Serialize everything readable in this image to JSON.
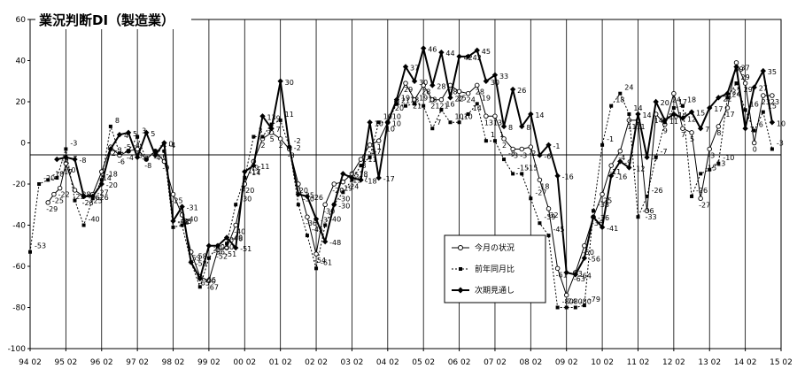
{
  "chart_data": {
    "type": "line",
    "title": "業況判断DI（製造業）",
    "xlabel": "",
    "ylabel": "",
    "ylim": [
      -100,
      60
    ],
    "yticks": [
      -100,
      -80,
      -60,
      -40,
      -20,
      0,
      20,
      40,
      60
    ],
    "grid": {
      "vertical_year_lines": true,
      "horizontal": false
    },
    "legend_position": "lower-right-center",
    "x_start": "1994-02",
    "x_end": "2015-02",
    "x_tick_labels": [
      "94 02",
      "95 02",
      "96 02",
      "97 02",
      "98 02",
      "99 02",
      "00 02",
      "01 02",
      "02 02",
      "03 02",
      "04 02",
      "05 02",
      "06 02",
      "07 02",
      "08 02",
      "09 02",
      "10 02",
      "11 02",
      "12 02",
      "13 02",
      "14 02",
      "15 02"
    ],
    "series": [
      {
        "name": "今月の状況",
        "marker": "circle-open",
        "points": [
          [
            "1994-08",
            -29
          ],
          [
            "1994-10",
            -25
          ],
          [
            "1994-12",
            -22
          ],
          [
            "1995-02",
            -10
          ],
          [
            "1995-05",
            -23
          ],
          [
            "1995-08",
            -26
          ],
          [
            "1995-11",
            -25
          ],
          [
            "1996-02",
            -14
          ],
          [
            "1996-05",
            -2
          ],
          [
            "1996-08",
            -6
          ],
          [
            "1996-11",
            -4
          ],
          [
            "1997-02",
            -3
          ],
          [
            "1997-05",
            -8
          ],
          [
            "1997-08",
            -4
          ],
          [
            "1997-11",
            -9
          ],
          [
            "1998-02",
            -25
          ],
          [
            "1998-05",
            -35
          ],
          [
            "1998-08",
            -53
          ],
          [
            "1998-11",
            -65
          ],
          [
            "1999-02",
            -67
          ],
          [
            "1999-05",
            -52
          ],
          [
            "1999-08",
            -51
          ],
          [
            "1999-11",
            -40
          ],
          [
            "2000-02",
            -20
          ],
          [
            "2000-05",
            -9
          ],
          [
            "2000-08",
            2
          ],
          [
            "2000-11",
            5
          ],
          [
            "2001-02",
            2
          ],
          [
            "2001-05",
            -3
          ],
          [
            "2001-08",
            -20
          ],
          [
            "2001-11",
            -36
          ],
          [
            "2002-02",
            -54
          ],
          [
            "2002-05",
            -30
          ],
          [
            "2002-08",
            -20
          ],
          [
            "2002-11",
            -19
          ],
          [
            "2003-02",
            -15
          ],
          [
            "2003-05",
            -8
          ],
          [
            "2003-08",
            -1
          ],
          [
            "2003-11",
            1
          ],
          [
            "2004-02",
            10
          ],
          [
            "2004-05",
            20
          ],
          [
            "2004-08",
            29
          ],
          [
            "2004-11",
            21
          ],
          [
            "2005-02",
            28
          ],
          [
            "2005-05",
            21
          ],
          [
            "2005-08",
            21
          ],
          [
            "2005-11",
            28
          ],
          [
            "2006-02",
            25
          ],
          [
            "2006-05",
            24
          ],
          [
            "2006-08",
            28
          ],
          [
            "2006-11",
            13
          ],
          [
            "2007-02",
            13
          ],
          [
            "2007-05",
            2
          ],
          [
            "2007-08",
            -3
          ],
          [
            "2007-11",
            -3
          ],
          [
            "2008-02",
            -2
          ],
          [
            "2008-05",
            -18
          ],
          [
            "2008-08",
            -32
          ],
          [
            "2008-11",
            -61
          ],
          [
            "2009-02",
            -74
          ],
          [
            "2009-05",
            -63
          ],
          [
            "2009-08",
            -50
          ],
          [
            "2009-11",
            -36
          ],
          [
            "2010-02",
            -25
          ],
          [
            "2010-05",
            -11
          ],
          [
            "2010-08",
            -4
          ],
          [
            "2010-11",
            11
          ],
          [
            "2011-02",
            11
          ],
          [
            "2011-05",
            -33
          ],
          [
            "2011-08",
            14
          ],
          [
            "2011-11",
            9
          ],
          [
            "2012-02",
            24
          ],
          [
            "2012-05",
            7
          ],
          [
            "2012-08",
            5
          ],
          [
            "2012-11",
            -27
          ],
          [
            "2013-02",
            -3
          ],
          [
            "2013-05",
            8
          ],
          [
            "2013-08",
            17
          ],
          [
            "2013-11",
            39
          ],
          [
            "2014-02",
            29
          ],
          [
            "2014-05",
            0
          ],
          [
            "2014-08",
            23
          ],
          [
            "2014-11",
            23
          ]
        ]
      },
      {
        "name": "前年同月比",
        "marker": "square-filled",
        "points": [
          [
            "1994-02",
            -53
          ],
          [
            "1994-05",
            -20
          ],
          [
            "1994-08",
            -18
          ],
          [
            "1994-11",
            -17
          ],
          [
            "1995-02",
            -3
          ],
          [
            "1995-05",
            -28
          ],
          [
            "1995-08",
            -40
          ],
          [
            "1995-11",
            -27
          ],
          [
            "1996-02",
            -18
          ],
          [
            "1996-05",
            8
          ],
          [
            "1996-08",
            -5
          ],
          [
            "1996-11",
            -4
          ],
          [
            "1997-02",
            3
          ],
          [
            "1997-05",
            -8
          ],
          [
            "1997-08",
            -4
          ],
          [
            "1997-11",
            -4
          ],
          [
            "1998-02",
            -41
          ],
          [
            "1998-05",
            -40
          ],
          [
            "1998-08",
            -58
          ],
          [
            "1998-11",
            -70
          ],
          [
            "1999-02",
            -56
          ],
          [
            "1999-05",
            -50
          ],
          [
            "1999-08",
            -49
          ],
          [
            "1999-11",
            -30
          ],
          [
            "2000-02",
            -17
          ],
          [
            "2000-05",
            3
          ],
          [
            "2000-08",
            3
          ],
          [
            "2000-11",
            9
          ],
          [
            "2001-02",
            11
          ],
          [
            "2001-05",
            -2
          ],
          [
            "2001-08",
            -30
          ],
          [
            "2001-11",
            -45
          ],
          [
            "2002-02",
            -61
          ],
          [
            "2002-05",
            -40
          ],
          [
            "2002-08",
            -30
          ],
          [
            "2002-11",
            -24
          ],
          [
            "2003-02",
            -18
          ],
          [
            "2003-05",
            -11
          ],
          [
            "2003-08",
            -7
          ],
          [
            "2003-11",
            10
          ],
          [
            "2004-02",
            10
          ],
          [
            "2004-05",
            19
          ],
          [
            "2004-08",
            18
          ],
          [
            "2004-11",
            19
          ],
          [
            "2005-02",
            18
          ],
          [
            "2005-05",
            7
          ],
          [
            "2005-08",
            16
          ],
          [
            "2005-11",
            10
          ],
          [
            "2006-02",
            10
          ],
          [
            "2006-05",
            14
          ],
          [
            "2006-08",
            19
          ],
          [
            "2006-11",
            1
          ],
          [
            "2007-02",
            1
          ],
          [
            "2007-05",
            -8
          ],
          [
            "2007-08",
            -15
          ],
          [
            "2007-11",
            -15
          ],
          [
            "2008-02",
            -27
          ],
          [
            "2008-05",
            -39
          ],
          [
            "2008-08",
            -45
          ],
          [
            "2008-11",
            -80
          ],
          [
            "2009-02",
            -80
          ],
          [
            "2009-05",
            -80
          ],
          [
            "2009-08",
            -79
          ],
          [
            "2009-11",
            -33
          ],
          [
            "2010-02",
            -1
          ],
          [
            "2010-05",
            18
          ],
          [
            "2010-08",
            24
          ],
          [
            "2010-11",
            14
          ],
          [
            "2011-02",
            -36
          ],
          [
            "2011-05",
            -26
          ],
          [
            "2011-08",
            -7
          ],
          [
            "2011-11",
            10
          ],
          [
            "2012-02",
            17
          ],
          [
            "2012-05",
            18
          ],
          [
            "2012-08",
            -26
          ],
          [
            "2012-11",
            -15
          ],
          [
            "2013-02",
            -13
          ],
          [
            "2013-05",
            -10
          ],
          [
            "2013-08",
            22
          ],
          [
            "2013-11",
            29
          ],
          [
            "2014-02",
            16
          ],
          [
            "2014-05",
            6
          ],
          [
            "2014-08",
            15
          ],
          [
            "2014-11",
            -3
          ]
        ]
      },
      {
        "name": "次期見通し",
        "marker": "diamond-filled",
        "points": [
          [
            "1994-11",
            -8
          ],
          [
            "1995-02",
            -7
          ],
          [
            "1995-05",
            -8
          ],
          [
            "1995-08",
            -26
          ],
          [
            "1995-11",
            -26
          ],
          [
            "1996-02",
            -20
          ],
          [
            "1996-05",
            -3
          ],
          [
            "1996-08",
            4
          ],
          [
            "1996-11",
            5
          ],
          [
            "1997-02",
            -7
          ],
          [
            "1997-05",
            5
          ],
          [
            "1997-08",
            -6
          ],
          [
            "1997-11",
            0
          ],
          [
            "1998-02",
            -38
          ],
          [
            "1998-05",
            -31
          ],
          [
            "1998-08",
            -58
          ],
          [
            "1998-11",
            -66
          ],
          [
            "1999-02",
            -50
          ],
          [
            "1999-05",
            -50
          ],
          [
            "1999-08",
            -46
          ],
          [
            "1999-11",
            -51
          ],
          [
            "2000-02",
            -14
          ],
          [
            "2000-05",
            -11
          ],
          [
            "2000-08",
            13
          ],
          [
            "2000-11",
            7
          ],
          [
            "2001-02",
            30
          ],
          [
            "2001-05",
            -2
          ],
          [
            "2001-08",
            -25
          ],
          [
            "2001-11",
            -26
          ],
          [
            "2002-02",
            -37
          ],
          [
            "2002-05",
            -48
          ],
          [
            "2002-08",
            -30
          ],
          [
            "2002-11",
            -15
          ],
          [
            "2003-02",
            -17
          ],
          [
            "2003-05",
            -18
          ],
          [
            "2003-08",
            10
          ],
          [
            "2003-11",
            -17
          ],
          [
            "2004-02",
            10
          ],
          [
            "2004-05",
            21
          ],
          [
            "2004-08",
            37
          ],
          [
            "2004-11",
            30
          ],
          [
            "2005-02",
            46
          ],
          [
            "2005-05",
            28
          ],
          [
            "2005-08",
            44
          ],
          [
            "2005-11",
            22
          ],
          [
            "2006-02",
            42
          ],
          [
            "2006-05",
            42
          ],
          [
            "2006-08",
            45
          ],
          [
            "2006-11",
            30
          ],
          [
            "2007-02",
            33
          ],
          [
            "2007-05",
            8
          ],
          [
            "2007-08",
            26
          ],
          [
            "2007-11",
            8
          ],
          [
            "2008-02",
            14
          ],
          [
            "2008-05",
            -6
          ],
          [
            "2008-08",
            -1
          ],
          [
            "2008-11",
            -16
          ],
          [
            "2009-02",
            -63
          ],
          [
            "2009-05",
            -64
          ],
          [
            "2009-08",
            -56
          ],
          [
            "2009-11",
            -36
          ],
          [
            "2010-02",
            -41
          ],
          [
            "2010-05",
            -16
          ],
          [
            "2010-08",
            -9
          ],
          [
            "2010-11",
            -12
          ],
          [
            "2011-02",
            14
          ],
          [
            "2011-05",
            -7
          ],
          [
            "2011-08",
            20
          ],
          [
            "2011-11",
            11
          ],
          [
            "2012-02",
            14
          ],
          [
            "2012-05",
            12
          ],
          [
            "2012-08",
            15
          ],
          [
            "2012-11",
            7
          ],
          [
            "2013-02",
            17
          ],
          [
            "2013-05",
            22
          ],
          [
            "2013-08",
            24
          ],
          [
            "2013-11",
            37
          ],
          [
            "2014-02",
            7
          ],
          [
            "2014-05",
            27
          ],
          [
            "2014-08",
            35
          ],
          [
            "2014-11",
            10
          ]
        ]
      }
    ]
  }
}
